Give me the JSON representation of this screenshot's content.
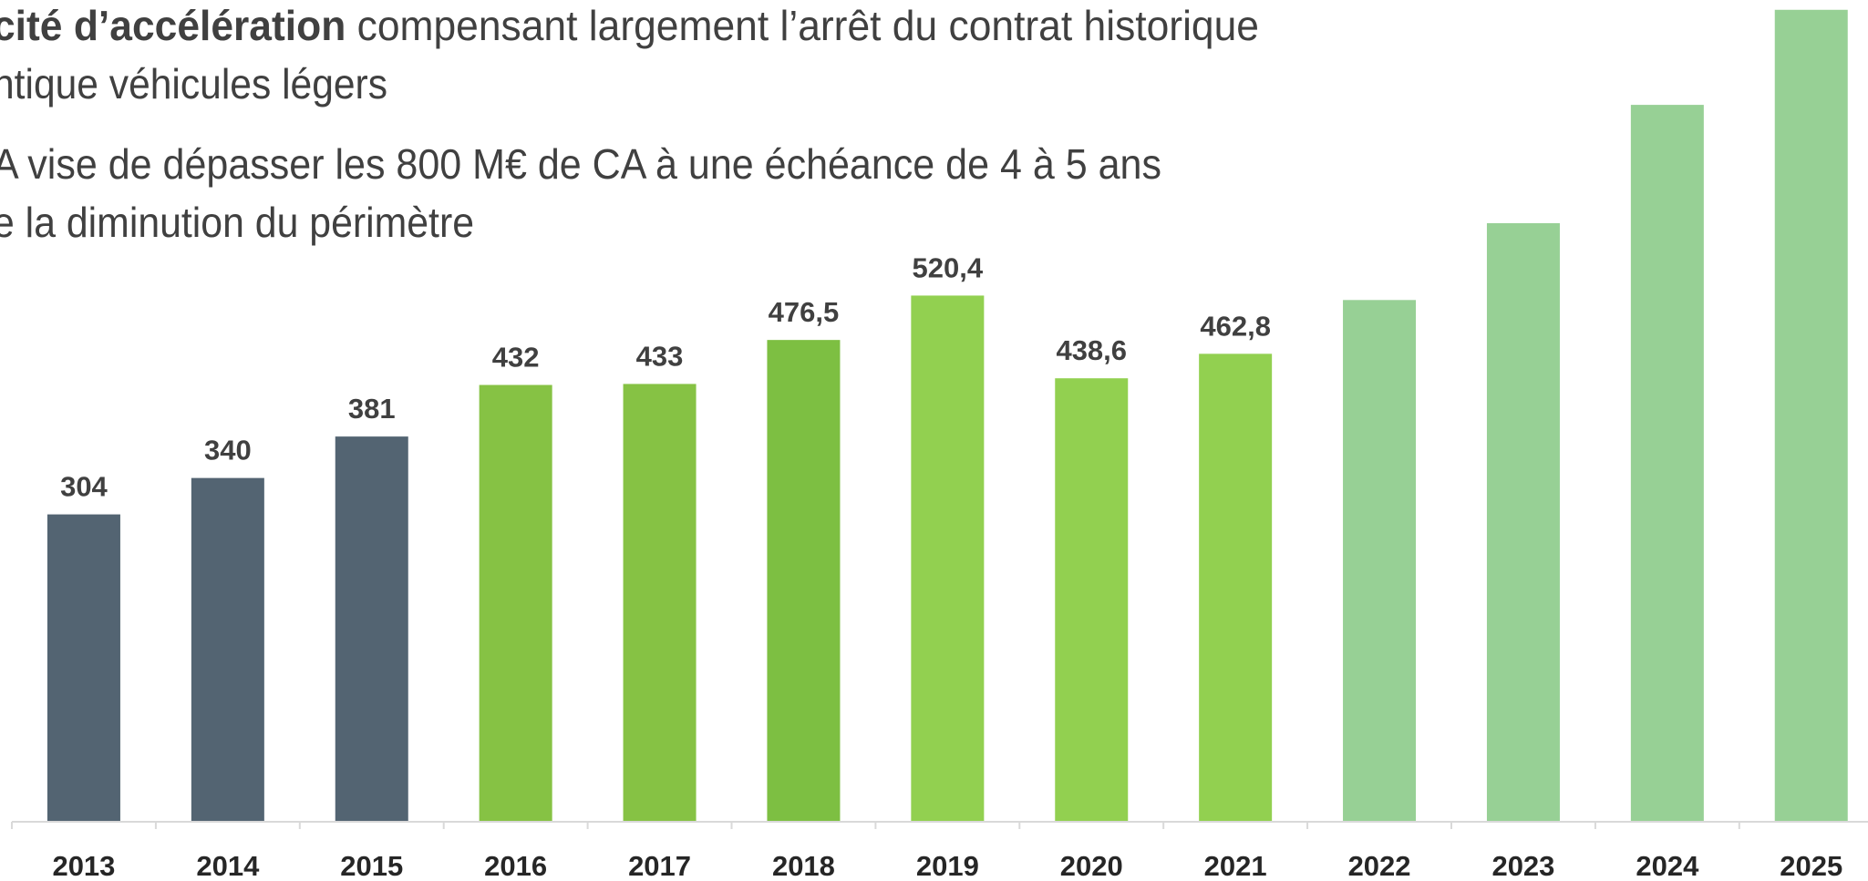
{
  "chart_data": {
    "type": "bar",
    "annotations": [
      {
        "bold": "cité d’accélération",
        "text": " compensant largement l’arrêt du contrat historique"
      },
      {
        "text": "ntique véhicules légers"
      },
      {
        "text": "A vise de dépasser les 800 M€ de CA à une échéance de 4 à 5 ans"
      },
      {
        "text": "e la diminution du périmètre"
      }
    ],
    "categories": [
      "2013",
      "2014",
      "2015",
      "2016",
      "2017",
      "2018",
      "2019",
      "2020",
      "2021",
      "2022",
      "2023",
      "2024",
      "2025"
    ],
    "values": [
      304,
      340,
      381,
      432,
      433,
      476.5,
      520.4,
      438.6,
      462.8,
      516,
      592,
      709,
      803
    ],
    "value_labels": [
      "304",
      "340",
      "381",
      "432",
      "433",
      "476,5",
      "520,4",
      "438,6",
      "462,8",
      null,
      null,
      null,
      null
    ],
    "colors": [
      "#536472",
      "#536472",
      "#536472",
      "#86c244",
      "#86c244",
      "#7dbf42",
      "#92d050",
      "#92d050",
      "#92d050",
      "#97d095",
      "#97d095",
      "#97d095",
      "#97d095"
    ],
    "ylim": [
      0,
      810
    ]
  }
}
